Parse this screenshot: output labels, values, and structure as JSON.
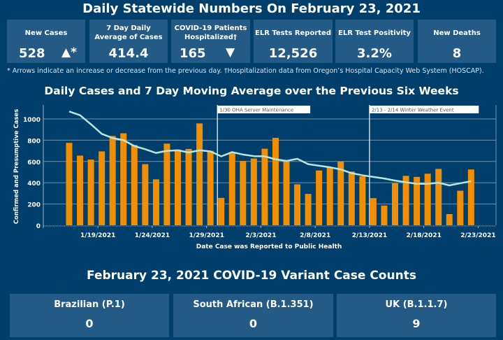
{
  "header": {
    "title": "Daily Statewide Numbers On February 23, 2021"
  },
  "cards": [
    {
      "label": "New Cases",
      "value": "528",
      "arrow": "▲*"
    },
    {
      "label": "7 Day Daily Average of Cases",
      "value": "414.4"
    },
    {
      "label": "COVID-19 Patients Hospitalized†",
      "value": "165",
      "arrow": "▼"
    },
    {
      "label": "ELR Tests Reported",
      "value": "12,526"
    },
    {
      "label": "ELR Test Positivity",
      "value": "3.2%"
    },
    {
      "label": "New Deaths",
      "value": "8"
    }
  ],
  "footnote": "* Arrows indicate an increase or decrease from the previous day. †Hospitalization data from Oregon’s Hospital Capacity Web System (HOSCAP).",
  "chart_data": {
    "type": "bar",
    "title": "Daily Cases and 7 Day Moving Average over the Previous Six Weeks",
    "xlabel": "Date Case was Reported to Public Health",
    "ylabel": "Confirmed and Presumptive Cases",
    "ylim": [
      0,
      1100
    ],
    "yticks": [
      0,
      200,
      400,
      600,
      800,
      1000
    ],
    "start_date": "1/16/2021",
    "xtick_labels": [
      {
        "index": 3,
        "label": "1/19/2021"
      },
      {
        "index": 8,
        "label": "1/24/2021"
      },
      {
        "index": 13,
        "label": "1/29/2021"
      },
      {
        "index": 18,
        "label": "2/3/2021"
      },
      {
        "index": 23,
        "label": "2/8/2021"
      },
      {
        "index": 28,
        "label": "2/13/2021"
      },
      {
        "index": 33,
        "label": "2/18/2021"
      },
      {
        "index": 38,
        "label": "2/23/2021"
      }
    ],
    "series": [
      {
        "name": "Daily Cases",
        "type": "bar",
        "color": "#f28e00",
        "values": [
          775,
          655,
          618,
          695,
          840,
          865,
          755,
          575,
          432,
          768,
          712,
          718,
          958,
          700,
          258,
          685,
          605,
          628,
          720,
          822,
          600,
          385,
          295,
          515,
          545,
          600,
          505,
          460,
          255,
          185,
          395,
          465,
          455,
          485,
          530,
          105,
          325,
          525
        ]
      },
      {
        "name": "7 Day Moving Average",
        "type": "line",
        "color": "#b9e6dc",
        "values": [
          1070,
          1035,
          950,
          860,
          820,
          800,
          745,
          715,
          680,
          700,
          705,
          685,
          705,
          695,
          648,
          688,
          665,
          650,
          648,
          620,
          605,
          625,
          575,
          560,
          545,
          525,
          490,
          470,
          455,
          440,
          420,
          405,
          390,
          390,
          400,
          375,
          395,
          414
        ]
      }
    ],
    "annotations": [
      {
        "index": 14,
        "label": "1/30 OHA Server Maintenance"
      },
      {
        "index": 28,
        "label": "2/13 - 2/14 Winter Weather Event"
      }
    ],
    "grid": true
  },
  "variants": {
    "title": "February 23, 2021 COVID-19 Variant Case Counts",
    "items": [
      {
        "label": "Brazilian (P.1)",
        "value": "0"
      },
      {
        "label": "South African (B.1.351)",
        "value": "0"
      },
      {
        "label": "UK (B.1.1.7)",
        "value": "9"
      }
    ]
  }
}
